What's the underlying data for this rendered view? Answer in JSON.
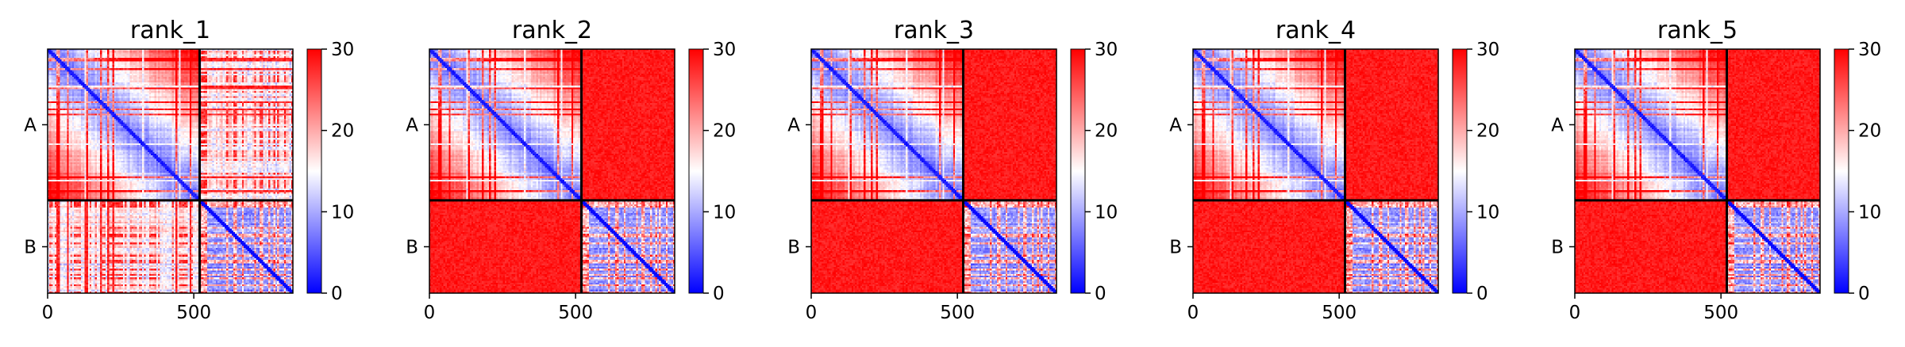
{
  "chart_data": {
    "type": "heatmap",
    "colormap": {
      "name": "bwr",
      "low": "#0000ff",
      "mid": "#ffffff",
      "high": "#ff0000"
    },
    "colorbar": {
      "range": [
        0,
        30
      ],
      "ticks": [
        "0",
        "10",
        "20",
        "30"
      ]
    },
    "x_range": [
      0,
      839
    ],
    "x_ticks": [
      {
        "value": 0,
        "label": "0"
      },
      {
        "value": 500,
        "label": "500"
      }
    ],
    "chain_boundary": 520,
    "chains": [
      "A",
      "B"
    ],
    "panels": [
      {
        "title": "rank_1",
        "offdiag": "mixed"
      },
      {
        "title": "rank_2",
        "offdiag": "high"
      },
      {
        "title": "rank_3",
        "offdiag": "high"
      },
      {
        "title": "rank_4",
        "offdiag": "high"
      },
      {
        "title": "rank_5",
        "offdiag": "high"
      }
    ]
  }
}
